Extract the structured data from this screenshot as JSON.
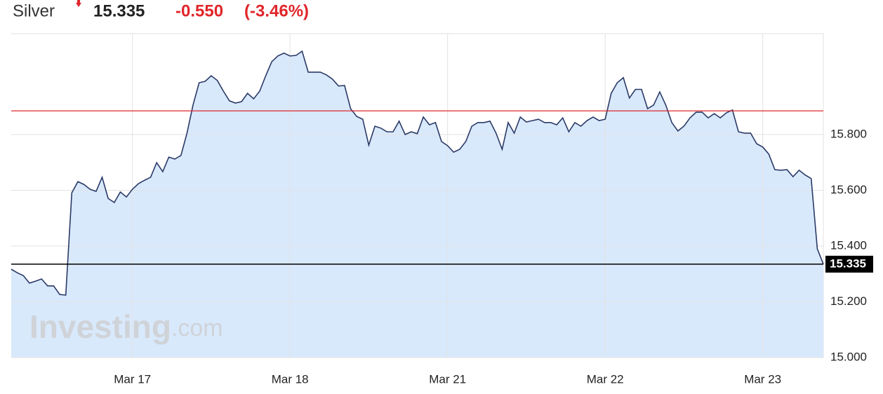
{
  "header": {
    "title": "Silver",
    "price": "15.335",
    "change": "-0.550",
    "change_pct": "(-3.46%)"
  },
  "chart_data": {
    "type": "area",
    "watermark": {
      "brand": "Investing",
      "suffix": ".com"
    },
    "x": [
      0,
      1,
      2,
      3,
      4,
      5,
      6,
      7,
      8,
      9,
      10,
      11,
      12,
      13,
      14,
      15,
      16,
      17,
      18,
      19,
      20,
      21,
      22,
      23,
      24,
      25,
      26,
      27,
      28,
      29,
      30,
      31,
      32,
      33,
      34,
      35,
      36,
      37,
      38,
      39,
      40,
      41,
      42,
      43,
      44,
      45,
      46,
      47,
      48,
      49,
      50,
      51,
      52,
      53,
      54,
      55,
      56,
      57,
      58,
      59,
      60,
      61,
      62,
      63,
      64,
      65,
      66,
      67,
      68,
      69,
      70,
      71,
      72,
      73,
      74,
      75,
      76,
      77,
      78,
      79,
      80,
      81,
      82,
      83,
      84,
      85,
      86,
      87,
      88,
      89,
      90,
      91,
      92,
      93,
      94,
      95,
      96,
      97,
      98,
      99,
      100,
      101,
      102,
      103,
      104,
      105,
      106,
      107,
      108,
      109,
      110,
      111,
      112,
      113,
      114,
      115,
      116,
      117,
      118,
      119,
      120,
      121,
      122,
      123,
      124,
      125,
      126,
      127,
      128,
      129,
      130,
      131,
      132,
      133,
      134
    ],
    "values": [
      15.317,
      15.304,
      15.294,
      15.267,
      15.274,
      15.282,
      15.257,
      15.257,
      15.226,
      15.224,
      15.591,
      15.631,
      15.621,
      15.604,
      15.596,
      15.647,
      15.571,
      15.556,
      15.594,
      15.576,
      15.604,
      15.624,
      15.636,
      15.647,
      15.699,
      15.667,
      15.719,
      15.712,
      15.725,
      15.805,
      15.906,
      15.986,
      15.991,
      16.011,
      15.994,
      15.956,
      15.921,
      15.913,
      15.918,
      15.948,
      15.928,
      15.956,
      16.011,
      16.062,
      16.082,
      16.092,
      16.082,
      16.084,
      16.099,
      16.024,
      16.024,
      16.024,
      16.014,
      15.999,
      15.974,
      15.976,
      15.893,
      15.865,
      15.855,
      15.762,
      15.83,
      15.823,
      15.81,
      15.81,
      15.848,
      15.8,
      15.81,
      15.803,
      15.863,
      15.835,
      15.843,
      15.775,
      15.76,
      15.737,
      15.747,
      15.775,
      15.83,
      15.843,
      15.843,
      15.848,
      15.805,
      15.747,
      15.843,
      15.805,
      15.863,
      15.845,
      15.85,
      15.855,
      15.843,
      15.843,
      15.835,
      15.86,
      15.81,
      15.843,
      15.83,
      15.85,
      15.863,
      15.85,
      15.855,
      15.948,
      15.986,
      16.004,
      15.931,
      15.962,
      15.962,
      15.893,
      15.906,
      15.953,
      15.906,
      15.843,
      15.813,
      15.83,
      15.86,
      15.88,
      15.88,
      15.86,
      15.875,
      15.86,
      15.878,
      15.888,
      15.81,
      15.805,
      15.805,
      15.767,
      15.755,
      15.73,
      15.674,
      15.672,
      15.674,
      15.649,
      15.672,
      15.655,
      15.642,
      15.39,
      15.335
    ],
    "color": "#2b3a67",
    "fill": "#d9e9fc",
    "xlim": [
      0,
      134
    ],
    "xticks": [
      {
        "value": 20,
        "label": "Mar 17"
      },
      {
        "value": 46,
        "label": "Mar 18"
      },
      {
        "value": 72,
        "label": "Mar 21"
      },
      {
        "value": 98,
        "label": "Mar 22"
      },
      {
        "value": 124,
        "label": "Mar 23"
      }
    ],
    "ylim": [
      15,
      16.162
    ],
    "yticks": [
      {
        "value": 15,
        "label": "15.000"
      },
      {
        "value": 15.2,
        "label": "15.200"
      },
      {
        "value": 15.4,
        "label": "15.400"
      },
      {
        "value": 15.6,
        "label": "15.600"
      },
      {
        "value": 15.8,
        "label": "15.800"
      }
    ],
    "grid": true,
    "reference_lines": [
      {
        "value": 15.885,
        "color": "#e0262b"
      },
      {
        "value": 15.335,
        "color": "#000000",
        "label": "15.335"
      }
    ]
  }
}
